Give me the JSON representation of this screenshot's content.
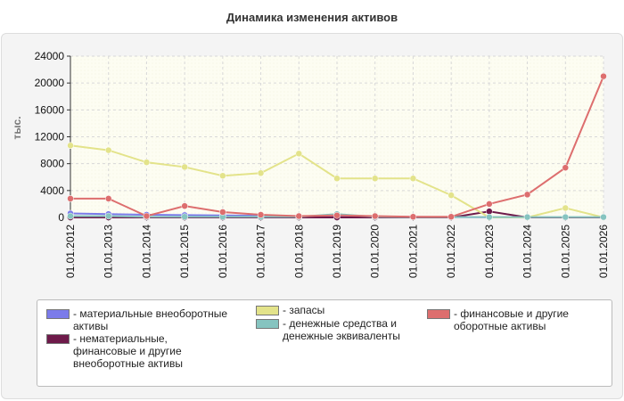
{
  "title": "Динамика изменения активов",
  "colors": {
    "tangible": "#7b7bea",
    "intangible": "#6e1a4a",
    "inventory": "#e3e38a",
    "cash": "#86c4c0",
    "financial": "#dd6e6e"
  },
  "chart_data": {
    "type": "line",
    "title": "Динамика изменения активов",
    "ylabel": "тыс.",
    "xlabel": "",
    "ylim": [
      0,
      24000
    ],
    "yticks": [
      0,
      4000,
      8000,
      12000,
      16000,
      20000,
      24000
    ],
    "grid": true,
    "legend_position": "bottom",
    "categories": [
      "01.01.2012",
      "01.01.2013",
      "01.01.2014",
      "01.01.2015",
      "01.01.2016",
      "01.01.2017",
      "01.01.2018",
      "01.01.2019",
      "01.01.2020",
      "01.01.2021",
      "01.01.2022",
      "01.01.2023",
      "01.01.2024",
      "01.01.2025",
      "01.01.2026"
    ],
    "series": [
      {
        "key": "tangible",
        "name": "материальные внеоборотные активы",
        "color": "#7b7bea",
        "values": [
          600,
          500,
          400,
          350,
          300,
          250,
          200,
          150,
          100,
          80,
          50,
          30,
          20,
          10,
          0
        ]
      },
      {
        "key": "intangible",
        "name": "нематериальные, финансовые и другие внеоборотные активы",
        "color": "#6e1a4a",
        "values": [
          0,
          0,
          0,
          0,
          0,
          0,
          0,
          0,
          0,
          0,
          0,
          900,
          0,
          0,
          0
        ]
      },
      {
        "key": "inventory",
        "name": "запасы",
        "color": "#e3e38a",
        "values": [
          10700,
          10000,
          8200,
          7500,
          6200,
          6600,
          9500,
          5800,
          5800,
          5800,
          3300,
          0,
          0,
          1400,
          0
        ]
      },
      {
        "key": "cash",
        "name": "денежные средства и денежные эквиваленты",
        "color": "#86c4c0",
        "values": [
          200,
          200,
          100,
          100,
          100,
          100,
          100,
          500,
          100,
          50,
          50,
          50,
          50,
          50,
          50
        ]
      },
      {
        "key": "financial",
        "name": "финансовые и другие оборотные активы",
        "color": "#dd6e6e",
        "values": [
          2800,
          2800,
          200,
          1700,
          800,
          400,
          200,
          300,
          200,
          100,
          100,
          2000,
          3400,
          7400,
          21000
        ]
      }
    ]
  },
  "legend": {
    "items": [
      {
        "key": "tangible",
        "label": "- материальные внеоборотные\nактивы"
      },
      {
        "key": "intangible",
        "label": "- нематериальные,\nфинансовые и другие\nвнеоборотные активы"
      },
      {
        "key": "inventory",
        "label": "- запасы"
      },
      {
        "key": "cash",
        "label": "- денежные средства и\nденежные эквиваленты"
      },
      {
        "key": "financial",
        "label": "- финансовые и другие\nоборотные активы"
      }
    ]
  }
}
